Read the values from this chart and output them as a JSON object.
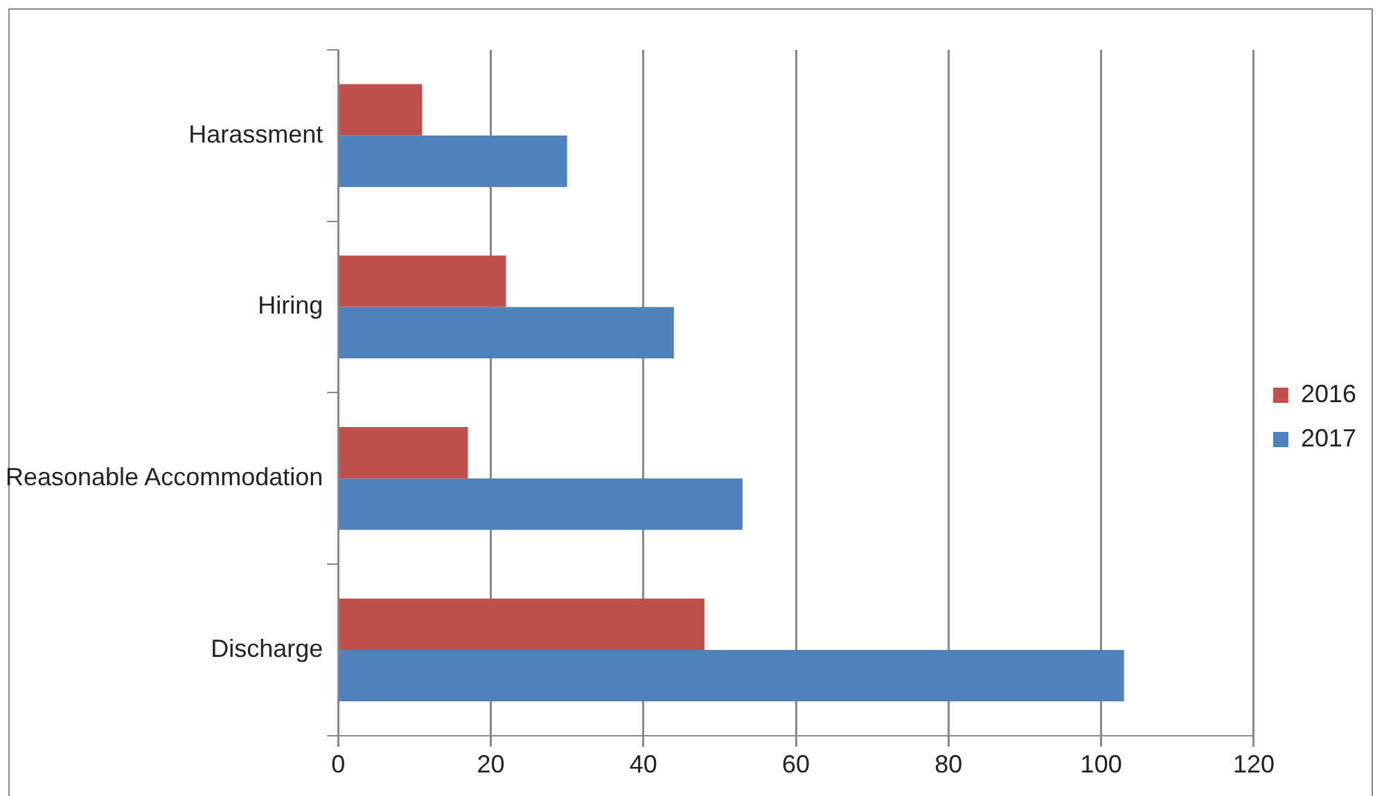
{
  "chart_data": {
    "type": "bar",
    "orientation": "horizontal",
    "categories": [
      "Harassment",
      "Hiring",
      "Reasonable Accommodation",
      "Discharge"
    ],
    "series": [
      {
        "name": "2016",
        "color": "#c0504d",
        "values": [
          11,
          22,
          17,
          48
        ]
      },
      {
        "name": "2017",
        "color": "#4f81bd",
        "values": [
          30,
          44,
          53,
          103
        ]
      }
    ],
    "xlim": [
      0,
      120
    ],
    "xticks": [
      0,
      20,
      40,
      60,
      80,
      100,
      120
    ],
    "grid": "x",
    "legend": "right"
  }
}
